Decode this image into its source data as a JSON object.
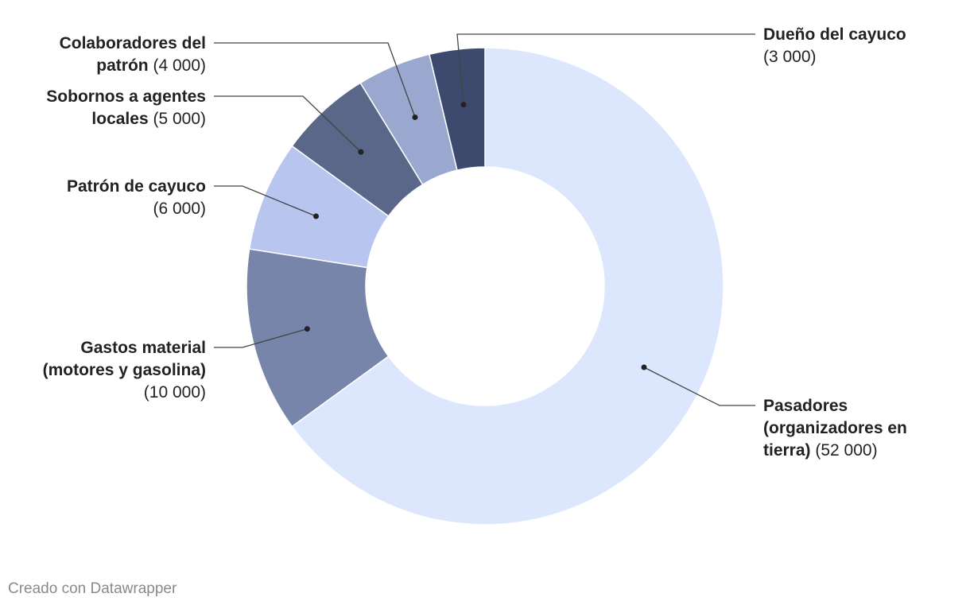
{
  "chart_data": {
    "type": "pie",
    "variant": "donut",
    "series": [
      {
        "name_lines": [
          "Pasadores",
          "(organizadores en",
          "tierra)"
        ],
        "value": 52000,
        "value_label": "(52 000)",
        "color": "#dce6fc"
      },
      {
        "name_lines": [
          "Gastos material",
          "(motores y gasolina)"
        ],
        "value": 10000,
        "value_label": "(10 000)",
        "color": "#7785aa"
      },
      {
        "name_lines": [
          "Patrón de cayuco"
        ],
        "value": 6000,
        "value_label": "(6 000)",
        "color": "#b7c5ef"
      },
      {
        "name_lines": [
          "Sobornos a agentes",
          "locales"
        ],
        "value": 5000,
        "value_label": "(5 000)",
        "color": "#5b6788"
      },
      {
        "name_lines": [
          "Colaboradores del",
          "patrón"
        ],
        "value": 4000,
        "value_label": "(4 000)",
        "color": "#9aa8cf"
      },
      {
        "name_lines": [
          "Dueño del cayuco"
        ],
        "value": 3000,
        "value_label": "(3 000)",
        "color": "#3e4a6d"
      }
    ],
    "legend": "none",
    "labels": "outside with leader lines"
  },
  "footer": {
    "credit": "Creado con Datawrapper"
  }
}
